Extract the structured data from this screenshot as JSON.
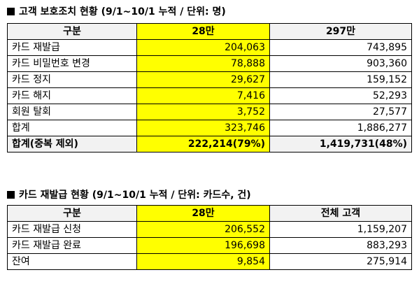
{
  "table1": {
    "title": "고객 보호조치 현황 (9/1~10/1 누적 / 단위: 명)",
    "headers": [
      "구분",
      "28만",
      "297만"
    ],
    "rows": [
      {
        "label": "카드 재발급",
        "a": "204,063",
        "b": "743,895"
      },
      {
        "label": "카드 비밀번호 변경",
        "a": "78,888",
        "b": "903,360"
      },
      {
        "label": "카드 정지",
        "a": "29,627",
        "b": "159,152"
      },
      {
        "label": "카드 해지",
        "a": "7,416",
        "b": "52,293"
      },
      {
        "label": "회원 탈회",
        "a": "3,752",
        "b": "27,577"
      },
      {
        "label": "합계",
        "a": "323,746",
        "b": "1,886,277"
      }
    ],
    "total": {
      "label": "합계(중복 제외)",
      "a": "222,214(79%)",
      "b": "1,419,731(48%)"
    }
  },
  "table2": {
    "title": "카드 재발급 현황 (9/1~10/1 누적 / 단위: 카드수, 건)",
    "headers": [
      "구분",
      "28만",
      "전체 고객"
    ],
    "rows": [
      {
        "label": "카드 재발급 신청",
        "a": "206,552",
        "b": "1,159,207"
      },
      {
        "label": "카드 재발급 완료",
        "a": "196,698",
        "b": "883,293"
      },
      {
        "label": "잔여",
        "a": "9,854",
        "b": "275,914"
      }
    ]
  },
  "colors": {
    "highlight": "#ffff00",
    "header_bg": "#f2f2f2",
    "border": "#000000"
  }
}
